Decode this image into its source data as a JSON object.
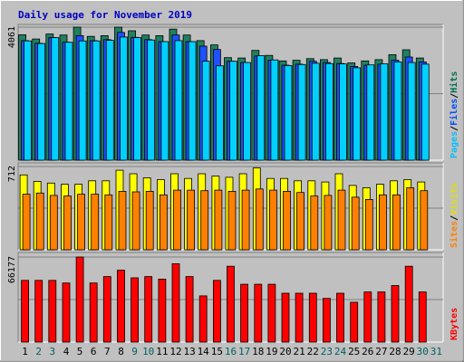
{
  "chart_data": {
    "type": "bar",
    "title": "Daily usage for November 2019",
    "categories": [
      "1",
      "2",
      "3",
      "4",
      "5",
      "6",
      "7",
      "8",
      "9",
      "10",
      "11",
      "12",
      "13",
      "14",
      "15",
      "16",
      "17",
      "18",
      "19",
      "20",
      "21",
      "22",
      "23",
      "24",
      "25",
      "26",
      "27",
      "28",
      "29",
      "30",
      "31"
    ],
    "weekend_days": [
      "2",
      "3",
      "9",
      "10",
      "16",
      "17",
      "23",
      "24",
      "30",
      "31"
    ],
    "panels": [
      {
        "id": "hits",
        "max_label": "4061",
        "ylim": [
          0,
          4061
        ],
        "labels": [
          "Pages",
          "/",
          "Files",
          "/",
          "Hits"
        ],
        "label_colors": [
          "#00c0ff",
          "#000000",
          "#0050ff",
          "#000000",
          "#007050"
        ],
        "series": [
          {
            "name": "Hits",
            "color": "#208060",
            "values": [
              3830,
              3700,
              3850,
              3820,
              4061,
              3780,
              3800,
              4061,
              3950,
              3820,
              3800,
              4000,
              3820,
              3650,
              3520,
              3130,
              3120,
              3350,
              3200,
              3030,
              3050,
              3100,
              3070,
              3120,
              2970,
              3030,
              3070,
              3220,
              3370,
              3120,
              0
            ]
          },
          {
            "name": "Files",
            "color": "#2050ff",
            "values": [
              3650,
              3570,
              3740,
              3600,
              3800,
              3650,
              3680,
              3900,
              3750,
              3680,
              3620,
              3820,
              3620,
              3480,
              3380,
              3020,
              2980,
              3180,
              3050,
              2900,
              2930,
              3020,
              2980,
              2950,
              2860,
              2900,
              2930,
              3050,
              3150,
              3000,
              0
            ]
          },
          {
            "name": "Pages",
            "color": "#00d0ff",
            "values": [
              3640,
              3560,
              3740,
              3600,
              3640,
              3640,
              3660,
              3760,
              3740,
              3670,
              3620,
              3650,
              3620,
              3020,
              2880,
              3020,
              2980,
              3190,
              3060,
              2890,
              2920,
              2960,
              2950,
              2940,
              2820,
              2910,
              2940,
              3000,
              2980,
              2930,
              0
            ]
          }
        ]
      },
      {
        "id": "visits",
        "max_label": "712",
        "ylim": [
          0,
          712
        ],
        "labels": [
          "Sites",
          "/",
          "Visits"
        ],
        "label_colors": [
          "#ff8000",
          "#000000",
          "#e0e000"
        ],
        "series": [
          {
            "name": "Visits",
            "color": "#ffff00",
            "values": [
              640,
              585,
              570,
              560,
              560,
              590,
              590,
              680,
              650,
              615,
              600,
              650,
              610,
              650,
              630,
              620,
              650,
              700,
              610,
              610,
              590,
              590,
              580,
              650,
              550,
              530,
              560,
              590,
              600,
              580,
              0
            ]
          },
          {
            "name": "Sites",
            "color": "#ff8000",
            "values": [
              475,
              485,
              465,
              460,
              475,
              475,
              470,
              500,
              495,
              500,
              470,
              510,
              510,
              505,
              510,
              500,
              510,
              520,
              510,
              500,
              490,
              460,
              465,
              510,
              450,
              430,
              470,
              470,
              530,
              505,
              0
            ]
          }
        ]
      },
      {
        "id": "kbytes",
        "max_label": "66177",
        "ylim": [
          0,
          66177
        ],
        "labels": [
          "KBytes"
        ],
        "label_colors": [
          "#ff0000"
        ],
        "series": [
          {
            "name": "KBytes",
            "color": "#ff0000",
            "values": [
              48000,
              48000,
              48000,
              46000,
              66177,
              46000,
              51000,
              56000,
              50000,
              51000,
              49000,
              61000,
              51000,
              36000,
              48000,
              59000,
              45000,
              45000,
              45000,
              38000,
              38000,
              38000,
              34000,
              38000,
              31000,
              39000,
              39000,
              44000,
              59000,
              39000,
              0
            ]
          }
        ]
      }
    ]
  },
  "colors": {
    "background": "#c0c0c0",
    "plot_background": "#c0c0c0",
    "title": "#0000c0",
    "weekday_tick": "#000000",
    "weekend_tick": "#006060"
  }
}
